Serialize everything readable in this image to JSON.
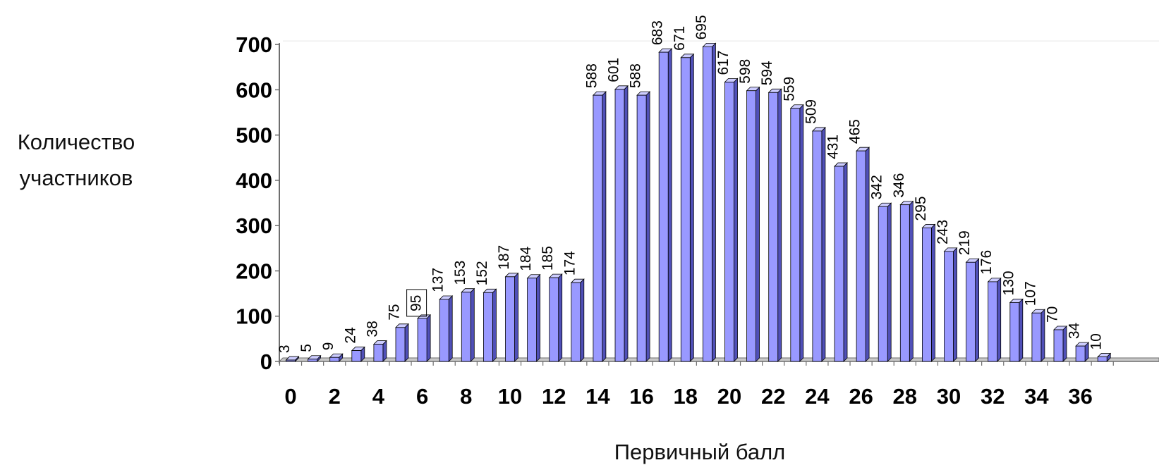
{
  "chart_data": {
    "type": "bar",
    "xlabel": "Первичный балл",
    "ylabel_lines": [
      "Количество",
      "участников"
    ],
    "x": [
      0,
      1,
      2,
      3,
      4,
      5,
      6,
      7,
      8,
      9,
      10,
      11,
      12,
      13,
      14,
      15,
      16,
      17,
      18,
      19,
      20,
      21,
      22,
      23,
      24,
      25,
      26,
      27,
      28,
      29,
      30,
      31,
      32,
      33,
      34,
      35,
      36,
      37
    ],
    "values": [
      3,
      5,
      9,
      24,
      38,
      75,
      95,
      137,
      153,
      152,
      187,
      184,
      185,
      174,
      588,
      601,
      588,
      683,
      671,
      695,
      617,
      598,
      594,
      559,
      509,
      431,
      465,
      342,
      346,
      295,
      243,
      219,
      176,
      130,
      107,
      70,
      34,
      10
    ],
    "x_tick_labels": [
      "0",
      "2",
      "4",
      "6",
      "8",
      "10",
      "12",
      "14",
      "16",
      "18",
      "20",
      "22",
      "24",
      "26",
      "28",
      "30",
      "32",
      "34",
      "36"
    ],
    "y_ticks": [
      0,
      100,
      200,
      300,
      400,
      500,
      600,
      700
    ],
    "ylim": [
      0,
      700
    ],
    "boxed_label_value": 95,
    "bar_color": "#9999ff",
    "bar_top_color": "#ccccff",
    "bar_side_color": "#5050b8",
    "grid": false,
    "legend": "none"
  }
}
